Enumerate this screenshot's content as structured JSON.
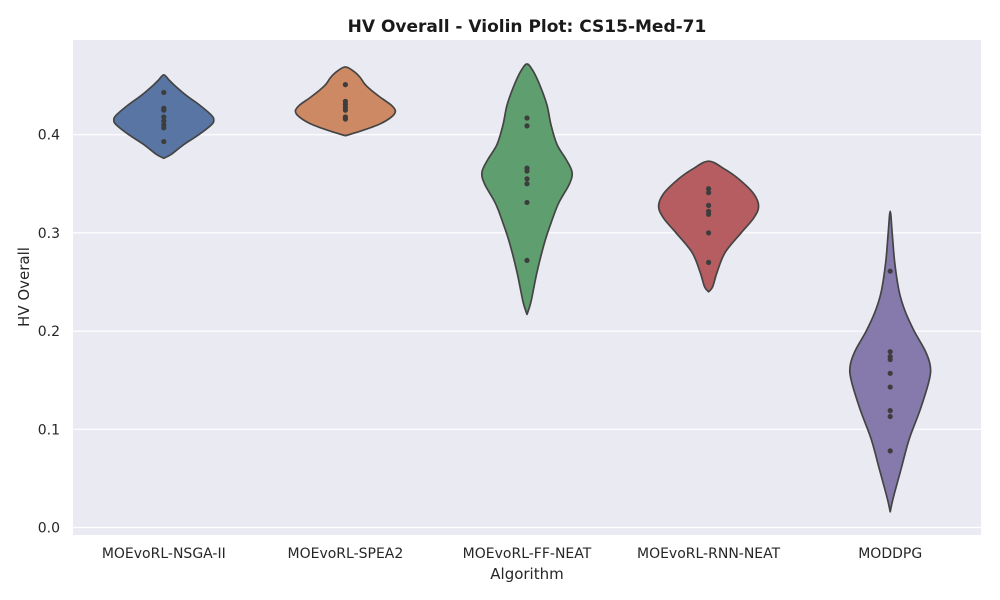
{
  "chart_data": {
    "type": "violin",
    "title": "HV Overall - Violin Plot: CS15-Med-71",
    "xlabel": "Algorithm",
    "ylabel": "HV Overall",
    "ylim": [
      -0.005,
      0.5
    ],
    "yticks": [
      0.0,
      0.1,
      0.2,
      0.3,
      0.4
    ],
    "ytick_labels": [
      "0.0",
      "0.1",
      "0.2",
      "0.3",
      "0.4"
    ],
    "grid": true,
    "background": "#eaeaf2",
    "categories": [
      "MOEvoRL-NSGA-II",
      "MOEvoRL-SPEA2",
      "MOEvoRL-FF-NEAT",
      "MOEvoRL-RNN-NEAT",
      "MODDPG"
    ],
    "series": [
      {
        "name": "MOEvoRL-NSGA-II",
        "color": "#5875a4",
        "points": [
          0.443,
          0.427,
          0.425,
          0.418,
          0.414,
          0.41,
          0.407,
          0.393
        ],
        "profile": [
          [
            0.376,
            0.0
          ],
          [
            0.38,
            0.15
          ],
          [
            0.39,
            0.4
          ],
          [
            0.4,
            0.7
          ],
          [
            0.41,
            0.95
          ],
          [
            0.415,
            1.0
          ],
          [
            0.42,
            0.95
          ],
          [
            0.43,
            0.72
          ],
          [
            0.44,
            0.45
          ],
          [
            0.45,
            0.22
          ],
          [
            0.456,
            0.1
          ],
          [
            0.461,
            0.0
          ]
        ]
      },
      {
        "name": "MOEvoRL-SPEA2",
        "color": "#cc8963",
        "points": [
          0.451,
          0.434,
          0.431,
          0.428,
          0.425,
          0.418,
          0.416
        ],
        "profile": [
          [
            0.399,
            0.0
          ],
          [
            0.402,
            0.2
          ],
          [
            0.41,
            0.65
          ],
          [
            0.418,
            0.92
          ],
          [
            0.424,
            1.0
          ],
          [
            0.43,
            0.92
          ],
          [
            0.438,
            0.7
          ],
          [
            0.446,
            0.5
          ],
          [
            0.452,
            0.38
          ],
          [
            0.458,
            0.3
          ],
          [
            0.464,
            0.18
          ],
          [
            0.469,
            0.0
          ]
        ]
      },
      {
        "name": "MOEvoRL-FF-NEAT",
        "color": "#5f9e6e",
        "points": [
          0.417,
          0.409,
          0.366,
          0.363,
          0.355,
          0.35,
          0.331,
          0.272
        ],
        "profile": [
          [
            0.217,
            0.0
          ],
          [
            0.23,
            0.08
          ],
          [
            0.26,
            0.2
          ],
          [
            0.29,
            0.35
          ],
          [
            0.31,
            0.48
          ],
          [
            0.33,
            0.63
          ],
          [
            0.35,
            0.85
          ],
          [
            0.362,
            0.9
          ],
          [
            0.375,
            0.78
          ],
          [
            0.39,
            0.6
          ],
          [
            0.41,
            0.48
          ],
          [
            0.43,
            0.4
          ],
          [
            0.45,
            0.26
          ],
          [
            0.465,
            0.12
          ],
          [
            0.472,
            0.0
          ]
        ]
      },
      {
        "name": "MOEvoRL-RNN-NEAT",
        "color": "#b55d60",
        "points": [
          0.345,
          0.341,
          0.328,
          0.322,
          0.319,
          0.3,
          0.27
        ],
        "profile": [
          [
            0.24,
            0.0
          ],
          [
            0.245,
            0.08
          ],
          [
            0.26,
            0.17
          ],
          [
            0.28,
            0.33
          ],
          [
            0.3,
            0.65
          ],
          [
            0.315,
            0.9
          ],
          [
            0.327,
            1.0
          ],
          [
            0.34,
            0.9
          ],
          [
            0.355,
            0.6
          ],
          [
            0.365,
            0.32
          ],
          [
            0.373,
            0.0
          ]
        ]
      },
      {
        "name": "MODDPG",
        "color": "#857aab",
        "points": [
          0.261,
          0.179,
          0.174,
          0.171,
          0.157,
          0.143,
          0.119,
          0.113,
          0.078
        ],
        "profile": [
          [
            0.016,
            0.0
          ],
          [
            0.03,
            0.06
          ],
          [
            0.06,
            0.22
          ],
          [
            0.09,
            0.38
          ],
          [
            0.12,
            0.6
          ],
          [
            0.15,
            0.78
          ],
          [
            0.165,
            0.8
          ],
          [
            0.18,
            0.7
          ],
          [
            0.2,
            0.48
          ],
          [
            0.22,
            0.3
          ],
          [
            0.24,
            0.18
          ],
          [
            0.27,
            0.09
          ],
          [
            0.3,
            0.04
          ],
          [
            0.322,
            0.0
          ]
        ]
      }
    ]
  }
}
